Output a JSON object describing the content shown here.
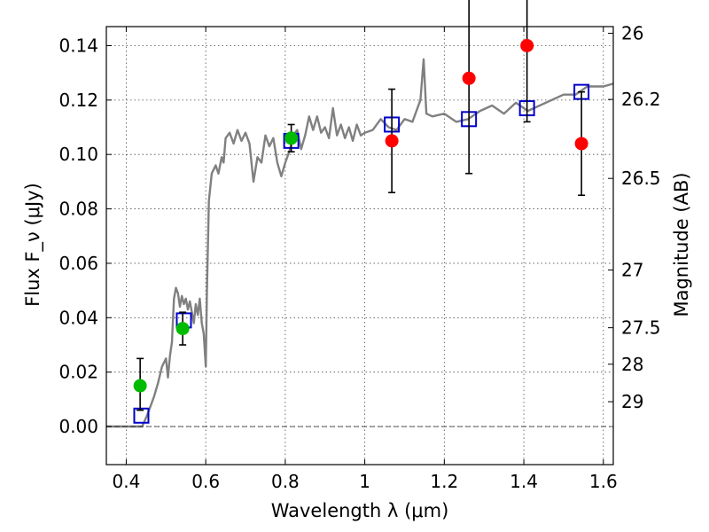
{
  "chart_data": {
    "type": "scatter",
    "xlabel": "Wavelength λ (μm)",
    "ylabel": "Flux F_ν (μJy)",
    "y2label": "Magnitude (AB)",
    "xlim": [
      0.35,
      1.625
    ],
    "ylim": [
      -0.014,
      0.147
    ],
    "grid": true,
    "x_ticks": [
      {
        "value": 0.4,
        "label": "0.4"
      },
      {
        "value": 0.6,
        "label": "0.6"
      },
      {
        "value": 0.8,
        "label": "0.8"
      },
      {
        "value": 1.0,
        "label": "1"
      },
      {
        "value": 1.2,
        "label": "1.2"
      },
      {
        "value": 1.4,
        "label": "1.4"
      },
      {
        "value": 1.6,
        "label": "1.6"
      }
    ],
    "y_ticks": [
      {
        "value": 0.0,
        "label": "0.00"
      },
      {
        "value": 0.02,
        "label": "0.02"
      },
      {
        "value": 0.04,
        "label": "0.04"
      },
      {
        "value": 0.06,
        "label": "0.06"
      },
      {
        "value": 0.08,
        "label": "0.08"
      },
      {
        "value": 0.1,
        "label": "0.10"
      },
      {
        "value": 0.12,
        "label": "0.12"
      },
      {
        "value": 0.14,
        "label": "0.14"
      }
    ],
    "y2_ticks": [
      {
        "value": 26,
        "label": "26"
      },
      {
        "value": 26.2,
        "label": "26.2"
      },
      {
        "value": 26.5,
        "label": "26.5"
      },
      {
        "value": 27,
        "label": "27"
      },
      {
        "value": 27.5,
        "label": "27.5"
      },
      {
        "value": 28,
        "label": "28"
      },
      {
        "value": 29,
        "label": "29"
      }
    ],
    "series": [
      {
        "kind": "line",
        "color": "#808080",
        "points": [
          [
            0.35,
            0.0
          ],
          [
            0.44,
            0.0
          ],
          [
            0.452,
            0.004
          ],
          [
            0.46,
            0.007
          ],
          [
            0.47,
            0.011
          ],
          [
            0.48,
            0.016
          ],
          [
            0.49,
            0.022
          ],
          [
            0.5,
            0.025
          ],
          [
            0.505,
            0.018
          ],
          [
            0.51,
            0.026
          ],
          [
            0.515,
            0.031
          ],
          [
            0.52,
            0.047
          ],
          [
            0.525,
            0.051
          ],
          [
            0.53,
            0.049
          ],
          [
            0.535,
            0.044
          ],
          [
            0.54,
            0.048
          ],
          [
            0.545,
            0.045
          ],
          [
            0.55,
            0.047
          ],
          [
            0.555,
            0.043
          ],
          [
            0.56,
            0.046
          ],
          [
            0.565,
            0.042
          ],
          [
            0.57,
            0.038
          ],
          [
            0.575,
            0.045
          ],
          [
            0.58,
            0.041
          ],
          [
            0.585,
            0.047
          ],
          [
            0.59,
            0.038
          ],
          [
            0.595,
            0.034
          ],
          [
            0.6,
            0.022
          ],
          [
            0.603,
            0.05
          ],
          [
            0.608,
            0.083
          ],
          [
            0.615,
            0.093
          ],
          [
            0.625,
            0.096
          ],
          [
            0.632,
            0.093
          ],
          [
            0.64,
            0.099
          ],
          [
            0.645,
            0.097
          ],
          [
            0.65,
            0.106
          ],
          [
            0.66,
            0.108
          ],
          [
            0.67,
            0.104
          ],
          [
            0.68,
            0.109
          ],
          [
            0.69,
            0.105
          ],
          [
            0.7,
            0.108
          ],
          [
            0.71,
            0.104
          ],
          [
            0.72,
            0.09
          ],
          [
            0.73,
            0.099
          ],
          [
            0.74,
            0.097
          ],
          [
            0.75,
            0.107
          ],
          [
            0.76,
            0.103
          ],
          [
            0.77,
            0.106
          ],
          [
            0.78,
            0.097
          ],
          [
            0.79,
            0.092
          ],
          [
            0.8,
            0.097
          ],
          [
            0.81,
            0.101
          ],
          [
            0.82,
            0.107
          ],
          [
            0.83,
            0.109
          ],
          [
            0.84,
            0.102
          ],
          [
            0.85,
            0.107
          ],
          [
            0.86,
            0.114
          ],
          [
            0.87,
            0.109
          ],
          [
            0.88,
            0.114
          ],
          [
            0.89,
            0.108
          ],
          [
            0.9,
            0.11
          ],
          [
            0.91,
            0.106
          ],
          [
            0.92,
            0.117
          ],
          [
            0.93,
            0.107
          ],
          [
            0.94,
            0.111
          ],
          [
            0.95,
            0.106
          ],
          [
            0.96,
            0.11
          ],
          [
            0.97,
            0.105
          ],
          [
            0.98,
            0.111
          ],
          [
            0.99,
            0.107
          ],
          [
            1.0,
            0.108
          ],
          [
            1.02,
            0.109
          ],
          [
            1.04,
            0.113
          ],
          [
            1.06,
            0.11
          ],
          [
            1.08,
            0.109
          ],
          [
            1.1,
            0.113
          ],
          [
            1.12,
            0.112
          ],
          [
            1.14,
            0.12
          ],
          [
            1.148,
            0.135
          ],
          [
            1.155,
            0.115
          ],
          [
            1.17,
            0.114
          ],
          [
            1.2,
            0.115
          ],
          [
            1.23,
            0.112
          ],
          [
            1.26,
            0.113
          ],
          [
            1.29,
            0.116
          ],
          [
            1.32,
            0.118
          ],
          [
            1.35,
            0.115
          ],
          [
            1.38,
            0.119
          ],
          [
            1.41,
            0.116
          ],
          [
            1.44,
            0.118
          ],
          [
            1.47,
            0.12
          ],
          [
            1.5,
            0.122
          ],
          [
            1.53,
            0.122
          ],
          [
            1.56,
            0.125
          ],
          [
            1.6,
            0.125
          ],
          [
            1.625,
            0.126
          ]
        ]
      },
      {
        "kind": "points",
        "marker": "square",
        "color": "#0000cc",
        "x": [
          0.438,
          0.545,
          0.815,
          1.068,
          1.262,
          1.408,
          1.545
        ],
        "y": [
          0.004,
          0.039,
          0.105,
          0.111,
          0.113,
          0.117,
          0.123
        ]
      },
      {
        "kind": "points",
        "marker": "circle",
        "color": "#00bb00",
        "x": [
          0.435,
          0.542,
          0.815
        ],
        "y": [
          0.015,
          0.036,
          0.106
        ],
        "err_low": [
          0.009,
          0.006,
          0.005
        ],
        "err_high": [
          0.01,
          0.006,
          0.005
        ]
      },
      {
        "kind": "points",
        "marker": "circle",
        "color": "#ff0000",
        "x": [
          1.068,
          1.262,
          1.408,
          1.545
        ],
        "y": [
          0.105,
          0.128,
          0.14,
          0.104
        ],
        "err_low": [
          0.019,
          0.035,
          0.028,
          0.019
        ],
        "err_high": [
          0.019,
          0.035,
          0.028,
          0.019
        ]
      }
    ]
  }
}
